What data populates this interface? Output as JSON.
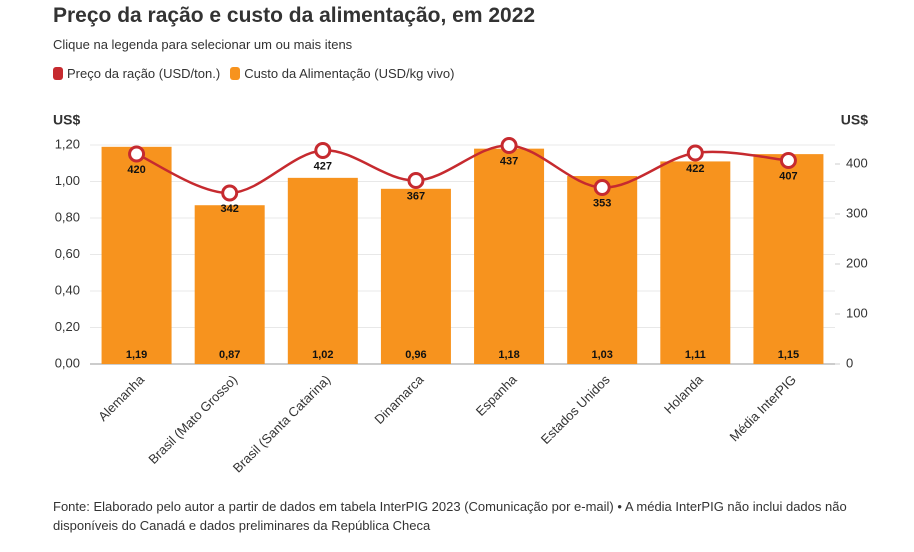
{
  "chart_data": {
    "type": "bar",
    "title": "Preço da ração e custo da alimentação, em 2022",
    "subtitle": "Clique na legenda para selecionar um ou mais itens",
    "y_label": "US$",
    "y2_label": "US$",
    "categories": [
      "Alemanha",
      "Brasil (Mato Grosso)",
      "Brasil (Santa Catarina)",
      "Dinamarca",
      "Espanha",
      "Estados Unidos",
      "Holanda",
      "Média InterPIG"
    ],
    "series": [
      {
        "name": "Preço da ração (USD/ton.)",
        "type": "line",
        "axis": "y2",
        "color": "#c62a2f",
        "values": [
          420,
          342,
          427,
          367,
          437,
          353,
          422,
          407
        ]
      },
      {
        "name": "Custo da Alimentação (USD/kg vivo)",
        "type": "bar",
        "color": "#f7931e",
        "values": [
          1.19,
          0.87,
          1.02,
          0.96,
          1.18,
          1.03,
          1.11,
          1.15
        ],
        "value_labels": [
          "1,19",
          "0,87",
          "1,02",
          "0,96",
          "1,18",
          "1,03",
          "1,11",
          "1,15"
        ]
      }
    ],
    "ylim": [
      0,
      1.2
    ],
    "yticks": [
      {
        "value": 0,
        "label": "0,00"
      },
      {
        "value": 0.2,
        "label": "0,20"
      },
      {
        "value": 0.4,
        "label": "0,40"
      },
      {
        "value": 0.6,
        "label": "0,60"
      },
      {
        "value": 0.8,
        "label": "0,80"
      },
      {
        "value": 1.0,
        "label": "1,00"
      },
      {
        "value": 1.2,
        "label": "1,20"
      }
    ],
    "y2lim": [
      0,
      438
    ],
    "y2ticks": [
      0,
      100,
      200,
      300,
      400
    ],
    "grid": true,
    "source": "Fonte: Elaborado pelo autor a partir de dados em tabela InterPIG 2023 (Comunicação por e-mail) • A média InterPIG não inclui dados não disponíveis do Canadá e dados preliminares da República Checa"
  }
}
